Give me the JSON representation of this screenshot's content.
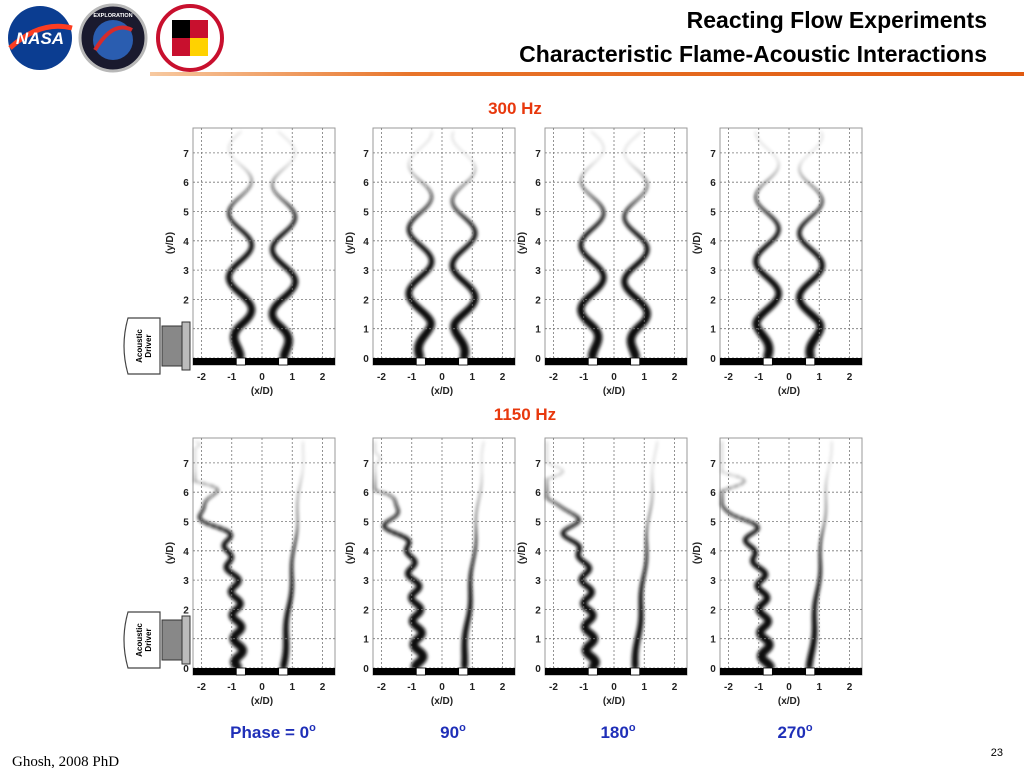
{
  "header": {
    "title_lines": [
      "Reacting Flow Experiments",
      "Characteristic Flame-Acoustic Interactions"
    ]
  },
  "logos": {
    "nasa": "NASA",
    "exploration": "EXPLORATION"
  },
  "rows": [
    {
      "label": "300 Hz",
      "driver": [
        "Acoustic",
        "Driver"
      ]
    },
    {
      "label": "1150 Hz",
      "driver": [
        "Acoustic",
        "Driver"
      ]
    }
  ],
  "axes": {
    "yticks": [
      0,
      1,
      2,
      3,
      4,
      5,
      6,
      7
    ],
    "xticks": [
      -2,
      -1,
      0,
      1,
      2
    ],
    "ylabel": "(y/D)",
    "xlabel": "(x/D)"
  },
  "phases": [
    {
      "text": "Phase = 0",
      "sup": "o"
    },
    {
      "text": "90",
      "sup": "o"
    },
    {
      "text": "180",
      "sup": "o"
    },
    {
      "text": "270",
      "sup": "o"
    }
  ],
  "footer": {
    "source": "Ghosh, 2008 PhD",
    "page": "23"
  }
}
